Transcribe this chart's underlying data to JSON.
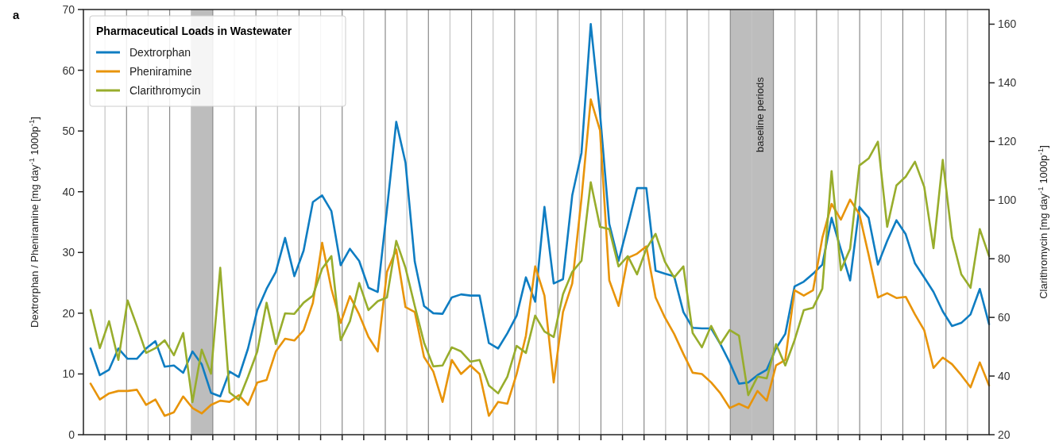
{
  "chart_data": {
    "type": "line",
    "annotations": [
      "a",
      "baseline periods"
    ],
    "grid": "x",
    "ylabel": "Dextrorphan / Pheniramine [mg day$^{-1}$ 1000p$^{-1}$]",
    "y2label": "Clarithromycin [mg day$^{-1}$ 1000p$^{-1}$]",
    "legend_title": "Pharmaceutical Loads in Wastewater",
    "legend": "top left",
    "tick_labels": "y",
    "categories": [
      null,
      null,
      null,
      null,
      null,
      null,
      null,
      null,
      null,
      null,
      null,
      null,
      null,
      null,
      null,
      null,
      null,
      null,
      null,
      null,
      null,
      null,
      null,
      null,
      null,
      null,
      null,
      null,
      null,
      null,
      null,
      null,
      null,
      null,
      null,
      null,
      null,
      null,
      null,
      null,
      null,
      null,
      null,
      null,
      null,
      null,
      null,
      null,
      null,
      null,
      null,
      null,
      null,
      null,
      null,
      null,
      null,
      null,
      null,
      null,
      null,
      null,
      null,
      null,
      null,
      null,
      null,
      null,
      null,
      null,
      null,
      null,
      null,
      null,
      null,
      null,
      null,
      null,
      null,
      null,
      null,
      null,
      null,
      null,
      null,
      null,
      null,
      null,
      null,
      null,
      null,
      null,
      null,
      null,
      null,
      null,
      null,
      null
    ],
    "ylim": [
      0,
      70
    ],
    "yticks": [
      0,
      10,
      20,
      30,
      40,
      50,
      60,
      70
    ],
    "y2lim": [
      20,
      165
    ],
    "y2ticks": [
      20,
      40,
      60,
      80,
      100,
      120,
      140,
      160
    ],
    "series": [
      {
        "name": "Dextrorphan",
        "color": "#0f7dc2",
        "values": [
          14.2,
          9.8,
          10.7,
          14.2,
          12.5,
          12.5,
          14.2,
          15.4,
          11.2,
          11.4,
          10.2,
          13.7,
          11.6,
          6.9,
          6.3,
          10.4,
          9.5,
          14.2,
          20.5,
          24,
          26.8,
          32.4,
          26.1,
          30.3,
          38.3,
          39.4,
          36.8,
          27.9,
          30.6,
          28.6,
          24.2,
          23.5,
          37.1,
          51.5,
          44.8,
          28.5,
          21.2,
          20,
          19.9,
          22.6,
          23.1,
          22.9,
          22.9,
          15.1,
          14.2,
          16.7,
          19.6,
          25.9,
          21.9,
          37.5,
          24.9,
          25.6,
          39.4,
          46.4,
          67.6,
          52.9,
          34.7,
          28.6,
          34.5,
          40.6,
          40.6,
          27,
          26.5,
          26.1,
          20.2,
          17.6,
          17.5,
          17.5,
          14.9,
          11.9,
          8.4,
          8.6,
          9.8,
          10.7,
          14.2,
          16.6,
          24.4,
          25.2,
          26.5,
          28,
          35.7,
          30.5,
          25.4,
          37.5,
          35.7,
          28,
          31.9,
          35.3,
          33,
          28.2,
          25.9,
          23.5,
          20.3,
          17.9,
          18.4,
          19.8,
          24,
          18.2
        ]
      },
      {
        "name": "Pheniramine",
        "color": "#e8940a",
        "values": [
          8.4,
          5.8,
          6.8,
          7.2,
          7.2,
          7.4,
          4.9,
          5.8,
          3.1,
          3.7,
          6.3,
          4.4,
          3.5,
          4.9,
          5.6,
          5.4,
          6.5,
          4.9,
          8.6,
          9,
          13.7,
          15.8,
          15.5,
          17.2,
          21.7,
          31.6,
          24,
          18.4,
          22.8,
          19.8,
          16.1,
          13.7,
          26.8,
          30.5,
          21,
          20.2,
          12.8,
          10.4,
          5.4,
          12.3,
          10,
          11.4,
          10,
          3.1,
          5.4,
          5.1,
          10,
          16.3,
          27.7,
          22.9,
          8.6,
          20.2,
          24.9,
          38.9,
          55.2,
          50.1,
          25.4,
          21.2,
          29.1,
          29.8,
          31,
          22.6,
          19.3,
          16.6,
          13.3,
          10.2,
          10,
          8.6,
          6.8,
          4.4,
          5.1,
          4.4,
          7.2,
          5.6,
          11.4,
          12.3,
          23.8,
          22.9,
          23.8,
          32.4,
          38,
          35.4,
          38.7,
          36.3,
          29.6,
          22.6,
          23.3,
          22.5,
          22.7,
          19.8,
          17.2,
          11,
          12.7,
          11.6,
          9.8,
          7.8,
          11.9,
          8.1
        ]
      },
      {
        "name": "Clarithromycin",
        "color": "#98ad2c",
        "axis": "y2",
        "values": [
          62.5,
          49.5,
          58.7,
          45.5,
          65.8,
          57.1,
          47.9,
          49.5,
          52.2,
          47.1,
          54.7,
          31.1,
          49,
          40.8,
          76.9,
          34.4,
          31.9,
          39.8,
          48.4,
          65,
          50.9,
          61.4,
          61.2,
          65,
          67.4,
          76.6,
          80.9,
          52.2,
          58.7,
          71.7,
          62.5,
          65.5,
          66.8,
          86.1,
          76.9,
          63.9,
          51.4,
          43.3,
          43.6,
          49.8,
          48.4,
          44.9,
          45.5,
          36.8,
          34.1,
          39.8,
          50.3,
          47.9,
          60.6,
          55.2,
          53.3,
          67.9,
          75.5,
          79.3,
          106.1,
          90.9,
          90.1,
          77.4,
          80.9,
          74.7,
          83.4,
          88.5,
          79,
          73.6,
          77.4,
          54.7,
          49.8,
          57.1,
          50.9,
          55.7,
          53.8,
          33.5,
          39.8,
          39.2,
          50.9,
          43.6,
          52.2,
          62.5,
          63.3,
          69.8,
          109.9,
          76.1,
          83.4,
          111.8,
          114.2,
          119.9,
          90.9,
          105,
          108,
          113.1,
          104.5,
          83.6,
          113.7,
          87.2,
          74.7,
          70.1,
          90.1,
          80.9
        ]
      }
    ]
  }
}
